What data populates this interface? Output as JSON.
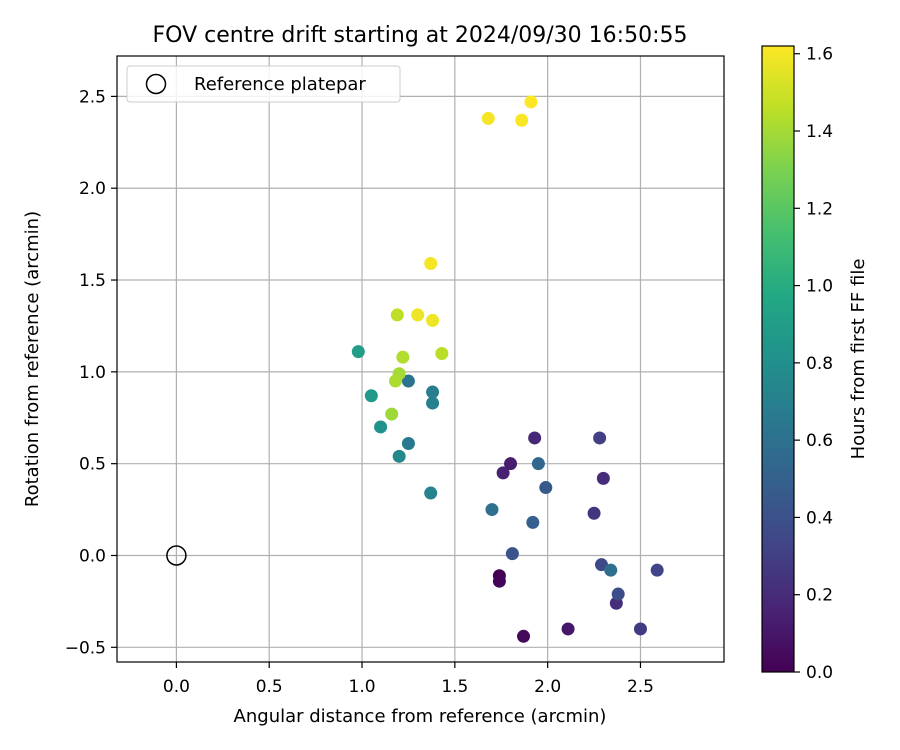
{
  "chart_data": {
    "type": "scatter",
    "title": "FOV centre drift starting at 2024/09/30 16:50:55",
    "xlabel": "Angular distance from reference (arcmin)",
    "ylabel": "Rotation from reference (arcmin)",
    "xlim": [
      -0.32,
      2.95
    ],
    "ylim": [
      -0.58,
      2.72
    ],
    "xticks": [
      0.0,
      0.5,
      1.0,
      1.5,
      2.0,
      2.5
    ],
    "yticks": [
      -0.5,
      0.0,
      0.5,
      1.0,
      1.5,
      2.0,
      2.5
    ],
    "xtick_labels": [
      "0.0",
      "0.5",
      "1.0",
      "1.5",
      "2.0",
      "2.5"
    ],
    "ytick_labels": [
      "−0.5",
      "0.0",
      "0.5",
      "1.0",
      "1.5",
      "2.0",
      "2.5"
    ],
    "grid": true,
    "legend": {
      "position": "top-left",
      "entries": [
        {
          "label": "Reference platepar",
          "marker": "open-circle"
        }
      ]
    },
    "reference_point": {
      "x": 0.0,
      "y": 0.0
    },
    "colorbar": {
      "label": "Hours from first FF file",
      "colormap": "viridis",
      "range": [
        0.0,
        1.62
      ],
      "ticks": [
        0.0,
        0.2,
        0.4,
        0.6,
        0.8,
        1.0,
        1.2,
        1.4,
        1.6
      ],
      "tick_labels": [
        "0.0",
        "0.2",
        "0.4",
        "0.6",
        "0.8",
        "1.0",
        "1.2",
        "1.4",
        "1.6"
      ]
    },
    "points": [
      {
        "x": 1.74,
        "y": -0.11,
        "c": 0.0
      },
      {
        "x": 1.74,
        "y": -0.14,
        "c": 0.02
      },
      {
        "x": 1.87,
        "y": -0.44,
        "c": 0.04
      },
      {
        "x": 2.11,
        "y": -0.4,
        "c": 0.1
      },
      {
        "x": 1.8,
        "y": 0.5,
        "c": 0.13
      },
      {
        "x": 1.76,
        "y": 0.45,
        "c": 0.15
      },
      {
        "x": 1.93,
        "y": 0.64,
        "c": 0.18
      },
      {
        "x": 2.3,
        "y": 0.42,
        "c": 0.2
      },
      {
        "x": 2.37,
        "y": -0.26,
        "c": 0.22
      },
      {
        "x": 2.25,
        "y": 0.23,
        "c": 0.25
      },
      {
        "x": 2.5,
        "y": -0.4,
        "c": 0.28
      },
      {
        "x": 2.28,
        "y": 0.64,
        "c": 0.3
      },
      {
        "x": 2.59,
        "y": -0.08,
        "c": 0.33
      },
      {
        "x": 2.29,
        "y": -0.05,
        "c": 0.36
      },
      {
        "x": 2.38,
        "y": -0.21,
        "c": 0.38
      },
      {
        "x": 1.81,
        "y": 0.01,
        "c": 0.42
      },
      {
        "x": 1.99,
        "y": 0.37,
        "c": 0.45
      },
      {
        "x": 1.92,
        "y": 0.18,
        "c": 0.5
      },
      {
        "x": 1.95,
        "y": 0.5,
        "c": 0.54
      },
      {
        "x": 2.34,
        "y": -0.08,
        "c": 0.58
      },
      {
        "x": 1.7,
        "y": 0.25,
        "c": 0.6
      },
      {
        "x": 1.25,
        "y": 0.95,
        "c": 0.62
      },
      {
        "x": 1.25,
        "y": 0.61,
        "c": 0.66
      },
      {
        "x": 1.38,
        "y": 0.89,
        "c": 0.68
      },
      {
        "x": 1.38,
        "y": 0.83,
        "c": 0.7
      },
      {
        "x": 1.37,
        "y": 0.34,
        "c": 0.72
      },
      {
        "x": 1.2,
        "y": 0.54,
        "c": 0.75
      },
      {
        "x": 1.1,
        "y": 0.7,
        "c": 0.82
      },
      {
        "x": 1.05,
        "y": 0.87,
        "c": 0.86
      },
      {
        "x": 0.98,
        "y": 1.11,
        "c": 0.9
      },
      {
        "x": 1.16,
        "y": 0.77,
        "c": 1.38
      },
      {
        "x": 1.2,
        "y": 0.99,
        "c": 1.4
      },
      {
        "x": 1.18,
        "y": 0.95,
        "c": 1.42
      },
      {
        "x": 1.22,
        "y": 1.08,
        "c": 1.43
      },
      {
        "x": 1.43,
        "y": 1.1,
        "c": 1.45
      },
      {
        "x": 1.19,
        "y": 1.31,
        "c": 1.46
      },
      {
        "x": 1.3,
        "y": 1.31,
        "c": 1.58
      },
      {
        "x": 1.38,
        "y": 1.28,
        "c": 1.58
      },
      {
        "x": 1.37,
        "y": 1.59,
        "c": 1.6
      },
      {
        "x": 1.68,
        "y": 2.38,
        "c": 1.6
      },
      {
        "x": 1.86,
        "y": 2.37,
        "c": 1.61
      },
      {
        "x": 1.91,
        "y": 2.47,
        "c": 1.62
      }
    ]
  }
}
